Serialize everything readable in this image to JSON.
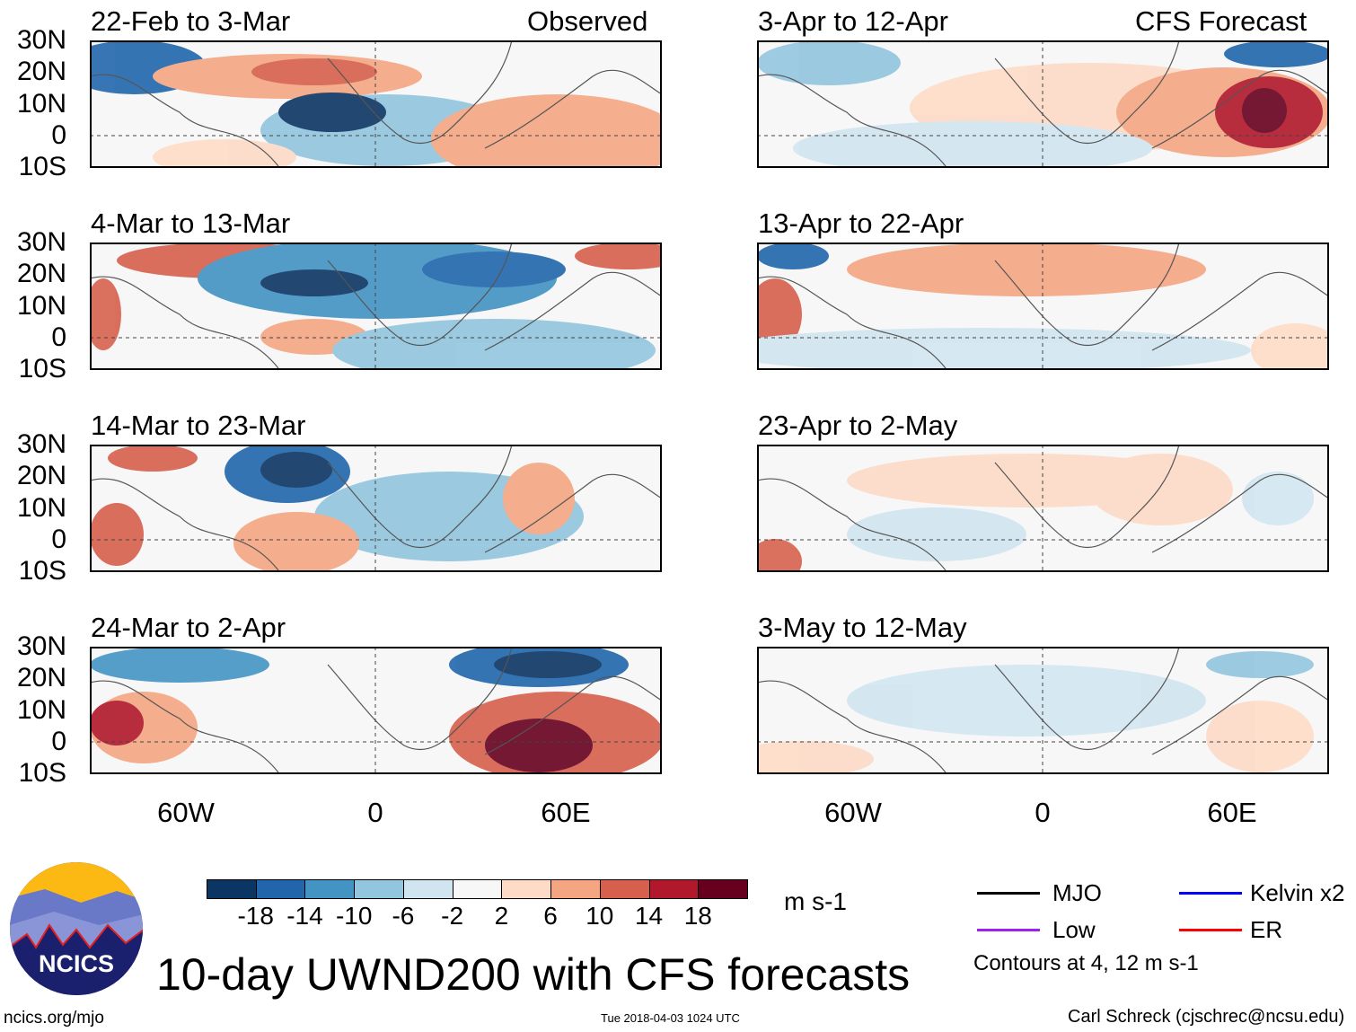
{
  "title": "10-day UWND200 with CFS forecasts",
  "columns": {
    "left": "Observed",
    "right": "CFS Forecast"
  },
  "panels_left": [
    "22-Feb to 3-Mar",
    "4-Mar to 13-Mar",
    "14-Mar to 23-Mar",
    "24-Mar to 2-Apr"
  ],
  "panels_right": [
    "3-Apr to 12-Apr",
    "13-Apr to 22-Apr",
    "23-Apr to 2-May",
    "3-May to 12-May"
  ],
  "lat_labels": [
    "30N",
    "20N",
    "10N",
    "0",
    "10S"
  ],
  "lon_labels": [
    "60W",
    "0",
    "60E"
  ],
  "colorbar": {
    "colors": [
      "#0b3563",
      "#2166ac",
      "#4393c3",
      "#92c5de",
      "#d1e5f0",
      "#f7f7f7",
      "#fddbc7",
      "#f4a582",
      "#d6604d",
      "#b2182b",
      "#67001f"
    ],
    "labels": [
      "-18",
      "-14",
      "-10",
      "-6",
      "-2",
      "2",
      "6",
      "10",
      "14",
      "18"
    ],
    "units": "m s-1"
  },
  "legend": {
    "items": [
      {
        "label": "MJO",
        "color": "#000000"
      },
      {
        "label": "Kelvin x2",
        "color": "#0000ff"
      },
      {
        "label": "Low",
        "color": "#a020f0"
      },
      {
        "label": "ER",
        "color": "#ff0000"
      }
    ],
    "note": "Contours at 4, 12 m s-1"
  },
  "logo": {
    "text": "NCICS"
  },
  "footer": {
    "left": "ncics.org/mjo",
    "center": "Tue 2018-04-03 1024 UTC",
    "right": "Carl Schreck (cjschrec@ncsu.edu)"
  }
}
